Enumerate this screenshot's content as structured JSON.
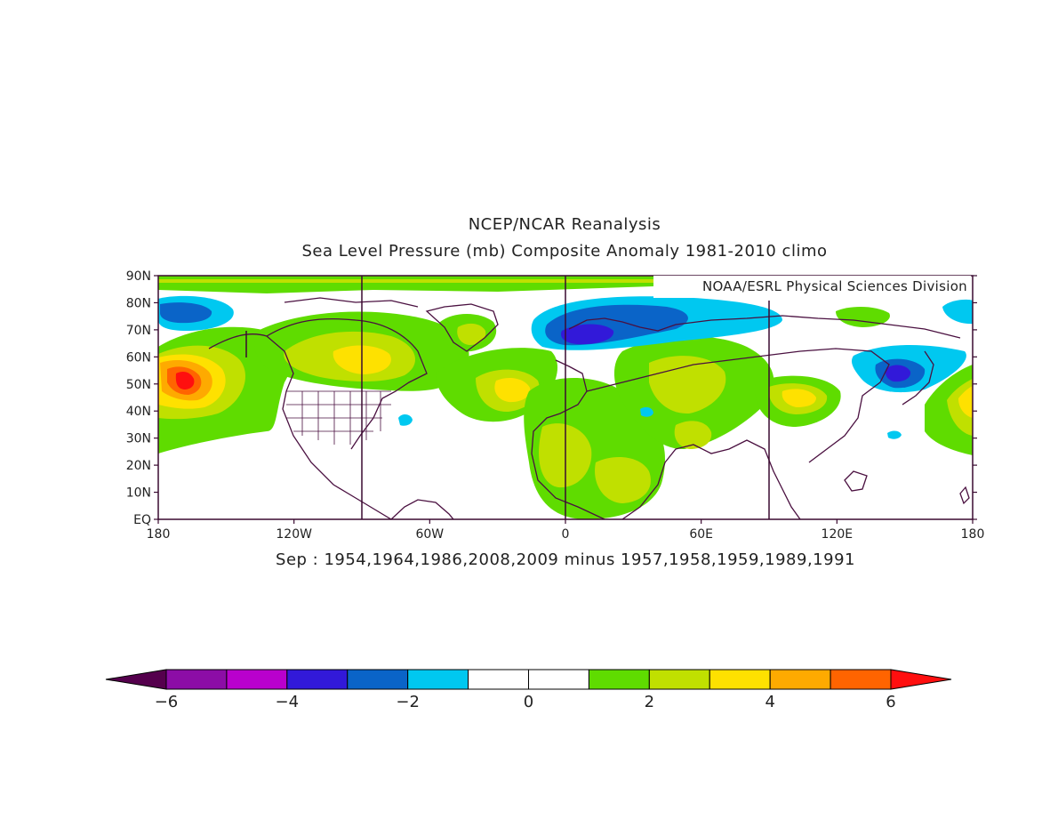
{
  "header": {
    "title": "NCEP/NCAR Reanalysis",
    "subtitle": "Sea Level Pressure (mb) Composite Anomaly 1981-2010 climo"
  },
  "credit": "NOAA/ESRL Physical Sciences Division",
  "map": {
    "composite_label": "Sep : 1954,1964,1986,2008,2009 minus 1957,1958,1959,1989,1991",
    "lat_labels": [
      "90N",
      "80N",
      "70N",
      "60N",
      "50N",
      "40N",
      "30N",
      "20N",
      "10N",
      "EQ"
    ],
    "lon_labels": [
      "180",
      "120W",
      "60W",
      "0",
      "60E",
      "120E",
      "180"
    ],
    "lat_range": [
      0,
      90
    ],
    "lon_range": [
      -180,
      180
    ]
  },
  "colorbar": {
    "colors": [
      "#8c0da6",
      "#b900cd",
      "#3219d9",
      "#0a64c8",
      "#00c8f0",
      "#ffffff",
      "#ffffff",
      "#5fdc00",
      "#c0e000",
      "#fee100",
      "#feaa00",
      "#ff6400"
    ],
    "low_arrow_color": "#55004d",
    "high_arrow_color": "#ff0f0f",
    "tick_labels": [
      "-6",
      "-4",
      "-2",
      "0",
      "2",
      "4",
      "6"
    ]
  }
}
